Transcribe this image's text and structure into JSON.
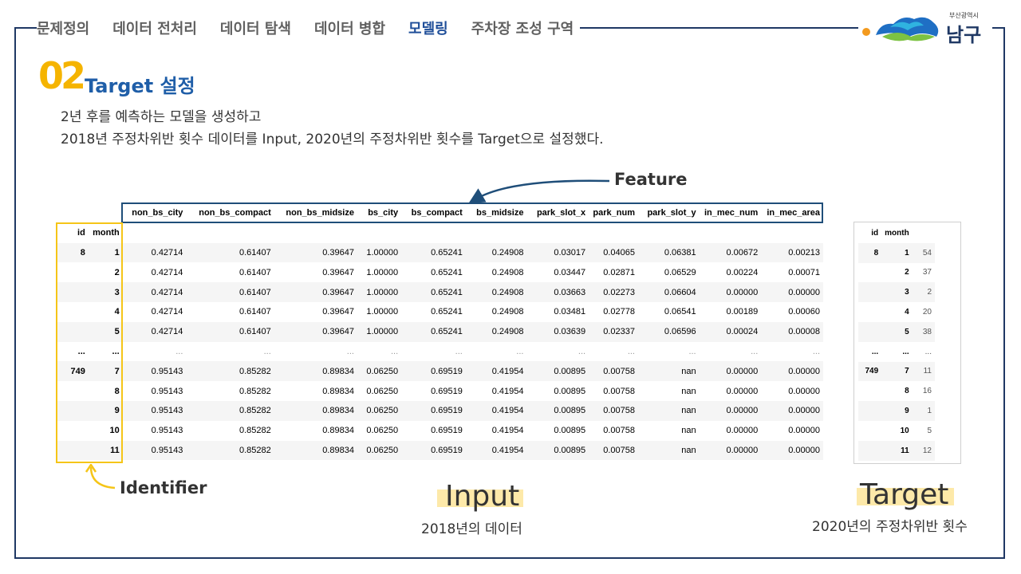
{
  "nav": {
    "items": [
      "문제정의",
      "데이터 전처리",
      "데이터 탐색",
      "데이터 병합",
      "모델링",
      "주차장 조성 구역"
    ],
    "active_index": 4
  },
  "logo": {
    "subtitle": "부산광역시",
    "name": "남구"
  },
  "section": {
    "number": "02",
    "title": "Target 설정",
    "desc_line1": "2년 후를 예측하는 모델을 생성하고",
    "desc_line2": "2018년 주정차위반 횟수 데이터를 Input, 2020년의 주정차위반 횟수를 Target으로 설정했다."
  },
  "annotations": {
    "feature": "Feature",
    "identifier": "Identifier"
  },
  "labels": {
    "input": "Input",
    "input_sub": "2018년의 데이터",
    "target": "Target",
    "target_sub": "2020년의 주정차위반 횟수"
  },
  "colors": {
    "navy": "#1f3864",
    "accent_blue": "#1f4e99",
    "yellow": "#f5c518",
    "highlight": "#fde9a9"
  },
  "main_table": {
    "columns": [
      "non_bs_city",
      "non_bs_compact",
      "non_bs_midsize",
      "bs_city",
      "bs_compact",
      "bs_midsize",
      "park_slot_x",
      "park_num",
      "park_slot_y",
      "in_mec_num",
      "in_mec_area"
    ],
    "index_names": [
      "id",
      "month"
    ],
    "rows": [
      {
        "id": "8",
        "month": "1",
        "values": [
          "0.42714",
          "0.61407",
          "0.39647",
          "1.00000",
          "0.65241",
          "0.24908",
          "0.03017",
          "0.04065",
          "0.06381",
          "0.00672",
          "0.00213"
        ]
      },
      {
        "id": "",
        "month": "2",
        "values": [
          "0.42714",
          "0.61407",
          "0.39647",
          "1.00000",
          "0.65241",
          "0.24908",
          "0.03447",
          "0.02871",
          "0.06529",
          "0.00224",
          "0.00071"
        ]
      },
      {
        "id": "",
        "month": "3",
        "values": [
          "0.42714",
          "0.61407",
          "0.39647",
          "1.00000",
          "0.65241",
          "0.24908",
          "0.03663",
          "0.02273",
          "0.06604",
          "0.00000",
          "0.00000"
        ]
      },
      {
        "id": "",
        "month": "4",
        "values": [
          "0.42714",
          "0.61407",
          "0.39647",
          "1.00000",
          "0.65241",
          "0.24908",
          "0.03481",
          "0.02778",
          "0.06541",
          "0.00189",
          "0.00060"
        ]
      },
      {
        "id": "",
        "month": "5",
        "values": [
          "0.42714",
          "0.61407",
          "0.39647",
          "1.00000",
          "0.65241",
          "0.24908",
          "0.03639",
          "0.02337",
          "0.06596",
          "0.00024",
          "0.00008"
        ]
      },
      {
        "id": "...",
        "month": "...",
        "values": [
          "...",
          "...",
          "...",
          "...",
          "...",
          "...",
          "...",
          "...",
          "...",
          "...",
          "..."
        ],
        "ellipsis": true
      },
      {
        "id": "749",
        "month": "7",
        "values": [
          "0.95143",
          "0.85282",
          "0.89834",
          "0.06250",
          "0.69519",
          "0.41954",
          "0.00895",
          "0.00758",
          "nan",
          "0.00000",
          "0.00000"
        ]
      },
      {
        "id": "",
        "month": "8",
        "values": [
          "0.95143",
          "0.85282",
          "0.89834",
          "0.06250",
          "0.69519",
          "0.41954",
          "0.00895",
          "0.00758",
          "nan",
          "0.00000",
          "0.00000"
        ]
      },
      {
        "id": "",
        "month": "9",
        "values": [
          "0.95143",
          "0.85282",
          "0.89834",
          "0.06250",
          "0.69519",
          "0.41954",
          "0.00895",
          "0.00758",
          "nan",
          "0.00000",
          "0.00000"
        ]
      },
      {
        "id": "",
        "month": "10",
        "values": [
          "0.95143",
          "0.85282",
          "0.89834",
          "0.06250",
          "0.69519",
          "0.41954",
          "0.00895",
          "0.00758",
          "nan",
          "0.00000",
          "0.00000"
        ]
      },
      {
        "id": "",
        "month": "11",
        "values": [
          "0.95143",
          "0.85282",
          "0.89834",
          "0.06250",
          "0.69519",
          "0.41954",
          "0.00895",
          "0.00758",
          "nan",
          "0.00000",
          "0.00000"
        ]
      }
    ]
  },
  "target_table": {
    "index_names": [
      "id",
      "month"
    ],
    "rows": [
      {
        "id": "8",
        "month": "1",
        "value": "54"
      },
      {
        "id": "",
        "month": "2",
        "value": "37"
      },
      {
        "id": "",
        "month": "3",
        "value": "2"
      },
      {
        "id": "",
        "month": "4",
        "value": "20"
      },
      {
        "id": "",
        "month": "5",
        "value": "38"
      },
      {
        "id": "...",
        "month": "...",
        "value": "...",
        "ellipsis": true
      },
      {
        "id": "749",
        "month": "7",
        "value": "11"
      },
      {
        "id": "",
        "month": "8",
        "value": "16"
      },
      {
        "id": "",
        "month": "9",
        "value": "1"
      },
      {
        "id": "",
        "month": "10",
        "value": "5"
      },
      {
        "id": "",
        "month": "11",
        "value": "12"
      }
    ]
  }
}
